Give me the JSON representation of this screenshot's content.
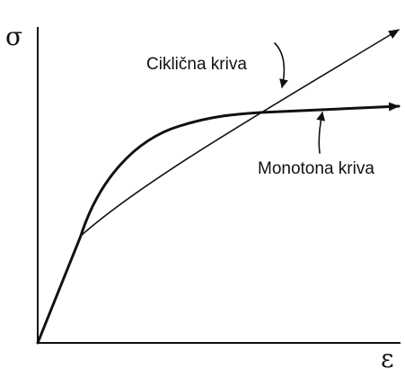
{
  "axes": {
    "y_label": "σ",
    "x_label": "ε"
  },
  "curves": [
    {
      "label": "Ciklična kriva"
    },
    {
      "label": "Monotona kriva"
    }
  ]
}
